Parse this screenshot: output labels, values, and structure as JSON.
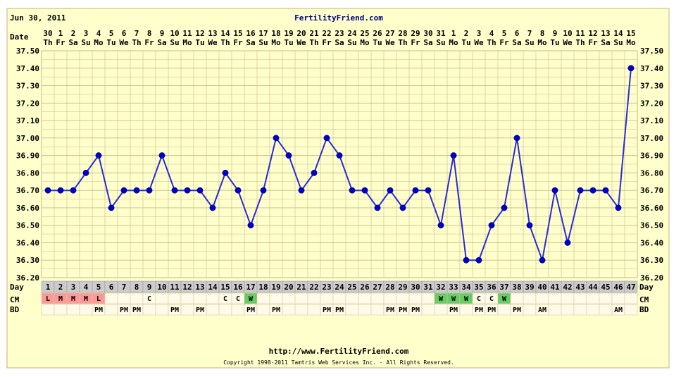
{
  "header": {
    "date": "Jun 30, 2011",
    "site": "FertilityFriend.com"
  },
  "footer": {
    "url": "http://www.FertilityFriend.com",
    "copyright": "Copyright 1998-2011 Tamtris Web Services Inc. - All Rights Reserved."
  },
  "row_labels": {
    "date": "Date",
    "day": "Day",
    "cm": "CM",
    "bd": "BD"
  },
  "colors": {
    "background": "#ffffcc",
    "grid": "#c8b98a",
    "line": "#2a2ad8",
    "point": "#0000cc",
    "menses": "#ff9999",
    "ewcm": "#66cc66",
    "day_row": "#cccccc",
    "title": "#000080"
  },
  "chart_data": {
    "type": "line",
    "title": "",
    "ylim": [
      36.2,
      37.5
    ],
    "y_ticks": [
      "37.50",
      "37.40",
      "37.30",
      "37.20",
      "37.10",
      "37.00",
      "36.90",
      "36.80",
      "36.70",
      "36.60",
      "36.50",
      "36.40",
      "36.30",
      "36.20"
    ],
    "dates": [
      "30",
      "1",
      "2",
      "3",
      "4",
      "5",
      "6",
      "7",
      "8",
      "9",
      "10",
      "11",
      "12",
      "13",
      "14",
      "15",
      "16",
      "17",
      "18",
      "19",
      "20",
      "21",
      "22",
      "23",
      "24",
      "25",
      "26",
      "27",
      "28",
      "29",
      "30",
      "31",
      "1",
      "2",
      "3",
      "4",
      "5",
      "6",
      "7",
      "8",
      "9",
      "10",
      "11",
      "12",
      "13",
      "14",
      "15"
    ],
    "weekdays": [
      "Th",
      "Fr",
      "Sa",
      "Su",
      "Mo",
      "Tu",
      "We",
      "Th",
      "Fr",
      "Sa",
      "Su",
      "Mo",
      "Tu",
      "We",
      "Th",
      "Fr",
      "Sa",
      "Su",
      "Mo",
      "Tu",
      "We",
      "Th",
      "Fr",
      "Sa",
      "Su",
      "Mo",
      "Tu",
      "We",
      "Th",
      "Fr",
      "Sa",
      "Su",
      "Mo",
      "Tu",
      "We",
      "Th",
      "Fr",
      "Sa",
      "Su",
      "Mo",
      "Tu",
      "We",
      "Th",
      "Fr",
      "Sa",
      "Su",
      "Mo"
    ],
    "days": [
      "1",
      "2",
      "3",
      "4",
      "5",
      "6",
      "7",
      "8",
      "9",
      "10",
      "11",
      "12",
      "13",
      "14",
      "15",
      "16",
      "17",
      "18",
      "19",
      "20",
      "21",
      "22",
      "23",
      "24",
      "25",
      "26",
      "27",
      "28",
      "29",
      "30",
      "31",
      "32",
      "33",
      "34",
      "35",
      "36",
      "37",
      "38",
      "39",
      "40",
      "41",
      "42",
      "43",
      "44",
      "45",
      "46",
      "47"
    ],
    "temps": [
      36.7,
      36.7,
      36.7,
      36.8,
      36.9,
      36.6,
      36.7,
      36.7,
      36.7,
      36.9,
      36.7,
      36.7,
      36.7,
      36.6,
      36.8,
      36.7,
      36.5,
      36.7,
      37.0,
      36.9,
      36.7,
      36.8,
      37.0,
      36.9,
      36.7,
      36.7,
      36.6,
      36.7,
      36.6,
      36.7,
      36.7,
      36.5,
      36.9,
      36.3,
      36.3,
      36.5,
      36.6,
      37.0,
      36.5,
      36.3,
      36.7,
      36.4,
      36.7,
      36.7,
      36.7,
      36.6,
      37.4
    ],
    "cm": [
      "L",
      "M",
      "M",
      "M",
      "L",
      "",
      "",
      "",
      "C",
      "",
      "",
      "",
      "",
      "",
      "C",
      "C",
      "W",
      "",
      "",
      "",
      "",
      "",
      "",
      "",
      "",
      "",
      "",
      "",
      "",
      "",
      "",
      "W",
      "W",
      "W",
      "C",
      "C",
      "W",
      "",
      "",
      "",
      "",
      "",
      "",
      "",
      "",
      "",
      ""
    ],
    "bd": [
      "",
      "",
      "",
      "",
      "PM",
      "",
      "PM",
      "PM",
      "",
      "",
      "PM",
      "",
      "PM",
      "",
      "",
      "",
      "PM",
      "",
      "PM",
      "",
      "",
      "",
      "PM",
      "PM",
      "",
      "",
      "",
      "PM",
      "PM",
      "PM",
      "",
      "",
      "PM",
      "",
      "PM",
      "PM",
      "",
      "PM",
      "",
      "AM",
      "",
      "",
      "",
      "",
      "",
      "AM",
      ""
    ]
  }
}
